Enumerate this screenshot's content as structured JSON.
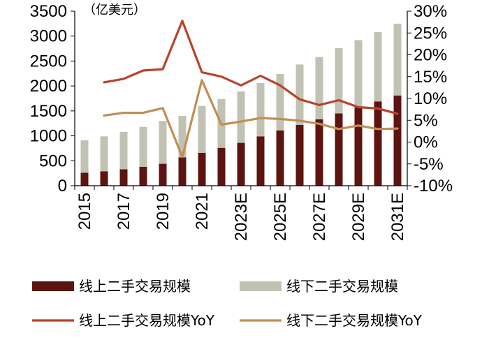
{
  "chart_data": {
    "type": "bar",
    "unit_label": "（亿美元）",
    "categories": [
      "2015",
      "2016",
      "2017",
      "2018",
      "2019",
      "2020",
      "2021",
      "2022",
      "2023E",
      "2024E",
      "2025E",
      "2026E",
      "2027E",
      "2028E",
      "2029E",
      "2030E",
      "2031E"
    ],
    "x_tick_labels": [
      "2015",
      "2017",
      "2019",
      "2021",
      "2023E",
      "2025E",
      "2027E",
      "2029E",
      "2031E"
    ],
    "y_left": {
      "range": [
        0,
        3500
      ],
      "ticks": [
        0,
        500,
        1000,
        1500,
        2000,
        2500,
        3000,
        3500
      ]
    },
    "y_right": {
      "range": [
        -10,
        30
      ],
      "ticks": [
        "-10%",
        "-5%",
        "0%",
        "5%",
        "10%",
        "15%",
        "20%",
        "25%",
        "30%"
      ]
    },
    "stack_series": [
      {
        "name": "线上二手交易规模",
        "color": "#5c1411",
        "values": [
          260,
          290,
          330,
          380,
          440,
          570,
          660,
          760,
          860,
          990,
          1110,
          1220,
          1330,
          1450,
          1570,
          1690,
          1810
        ]
      },
      {
        "name": "线下二手交易规模",
        "color": "#c2c2b4",
        "values": [
          650,
          700,
          750,
          800,
          860,
          830,
          940,
          980,
          1030,
          1070,
          1130,
          1210,
          1250,
          1310,
          1350,
          1390,
          1440
        ]
      }
    ],
    "line_series": [
      {
        "name": "线上二手交易规模YoY",
        "color": "#b8432a",
        "values": [
          null,
          13.7,
          14.5,
          16.4,
          16.7,
          27.8,
          16.0,
          15.0,
          13.0,
          15.2,
          13.0,
          9.8,
          8.5,
          9.6,
          8.0,
          7.7,
          6.5
        ]
      },
      {
        "name": "线下二手交易规模YoY",
        "color": "#c28e52",
        "values": [
          null,
          6.1,
          6.7,
          6.7,
          7.8,
          -3.4,
          14.2,
          4.0,
          4.7,
          5.5,
          5.3,
          4.9,
          4.2,
          3.0,
          3.8,
          3.0,
          3.1
        ]
      }
    ],
    "legend": [
      {
        "label": "线上二手交易规模",
        "kind": "bar",
        "color": "#5c1411"
      },
      {
        "label": "线下二手交易规模",
        "kind": "bar",
        "color": "#c2c2b4"
      },
      {
        "label": "线上二手交易规模YoY",
        "kind": "line",
        "color": "#b8432a"
      },
      {
        "label": "线下二手交易规模YoY",
        "kind": "line",
        "color": "#c28e52"
      }
    ],
    "legend_position": "bottom"
  }
}
